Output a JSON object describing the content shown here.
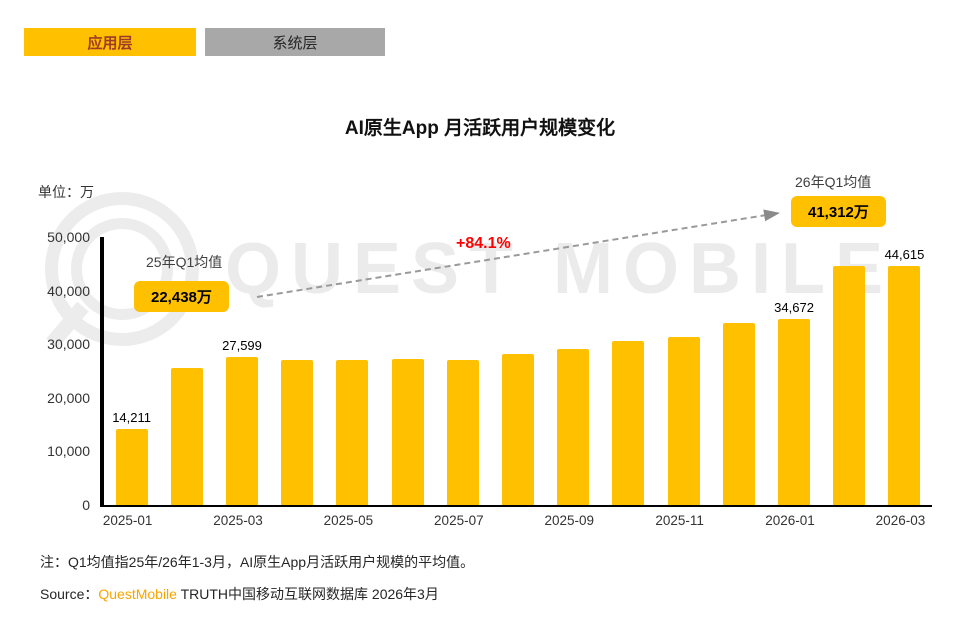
{
  "colors": {
    "brand_yellow": "#FFC000",
    "inactive_tab_gray": "#A8A8A8",
    "active_tab_text": "#9E3A26",
    "growth_red": "#FF0000",
    "source_brand_orange": "#F7A600",
    "watermark_gray": "#EBEBEB"
  },
  "tabs": [
    {
      "label": "应用层",
      "active": true
    },
    {
      "label": "系统层",
      "active": false
    }
  ],
  "title": "AI原生App 月活跃用户规模变化",
  "unit_label": "单位：万",
  "chart_data": {
    "type": "bar",
    "title": "AI原生App 月活跃用户规模变化",
    "ylabel": "单位：万",
    "ylim": [
      0,
      50000
    ],
    "categories": [
      "2025-01",
      "2025-02",
      "2025-03",
      "2025-04",
      "2025-05",
      "2025-06",
      "2025-07",
      "2025-08",
      "2025-09",
      "2025-10",
      "2025-11",
      "2025-12",
      "2026-01",
      "2026-02",
      "2026-03"
    ],
    "values": [
      14211,
      25504,
      27599,
      27000,
      27100,
      27250,
      27100,
      28200,
      29200,
      30600,
      31300,
      34000,
      34672,
      44649,
      44615
    ],
    "bar_labels": {
      "0": "14,211",
      "2": "27,599",
      "12": "34,672",
      "14": "44,615"
    },
    "x_tick_labels": [
      "2025-01",
      "2025-03",
      "2025-05",
      "2025-07",
      "2025-09",
      "2025-11",
      "2026-01",
      "2026-03"
    ],
    "y_ticks": [
      "50,000",
      "40,000",
      "30,000",
      "20,000",
      "10,000",
      "0"
    ],
    "bar_color": "#FFC000",
    "grid": false,
    "legend": false
  },
  "annotations": {
    "avg_2025_label": "25年Q1均值",
    "avg_2025_value": "22,438万",
    "avg_2026_label": "26年Q1均值",
    "avg_2026_value": "41,312万",
    "growth_label": "+84.1%"
  },
  "watermark": {
    "text": "QUEST MOBILE"
  },
  "footer": {
    "note": "注：Q1均值指25年/26年1-3月，AI原生App月活跃用户规模的平均值。",
    "source_prefix": "Source：",
    "source_brand": "QuestMobile",
    "source_suffix": " TRUTH中国移动互联网数据库 2026年3月"
  }
}
